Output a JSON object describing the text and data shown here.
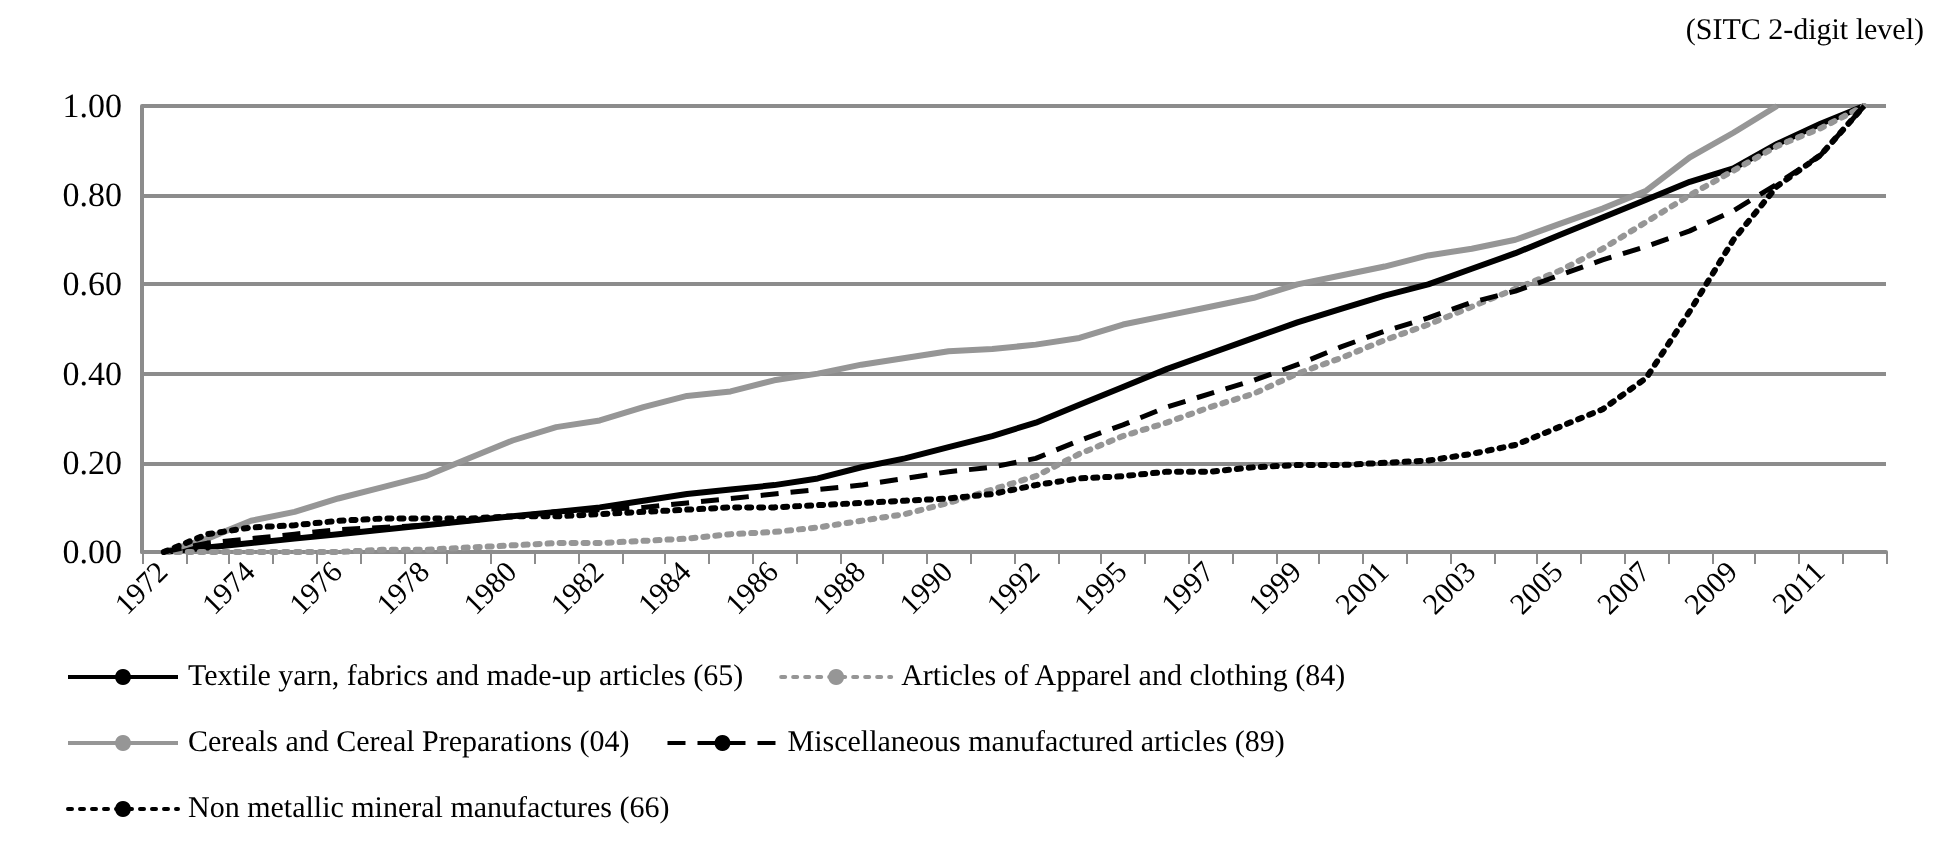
{
  "chart_data": {
    "type": "line",
    "annotations": [
      "(SITC 2-digit level)"
    ],
    "categories": [
      "1972",
      null,
      "1974",
      null,
      "1976",
      null,
      "1978",
      null,
      "1980",
      null,
      "1982",
      null,
      "1984",
      null,
      "1986",
      null,
      "1988",
      null,
      "1990",
      null,
      "1992",
      null,
      "1995",
      null,
      "1997",
      null,
      "1999",
      null,
      "2001",
      null,
      "2003",
      null,
      "2005",
      null,
      "2007",
      null,
      "2009",
      null,
      "2011",
      null
    ],
    "series": [
      {
        "name": "Textile yarn, fabrics and made-up articles (65)",
        "color": "#000000",
        "line_style": "solid",
        "values": [
          0.0,
          0.01,
          0.02,
          0.03,
          0.04,
          0.05,
          0.06,
          0.07,
          0.08,
          0.09,
          0.1,
          0.115,
          0.13,
          0.14,
          0.15,
          0.165,
          0.19,
          0.21,
          0.235,
          0.26,
          0.29,
          0.33,
          0.37,
          0.41,
          0.445,
          0.48,
          0.515,
          0.545,
          0.575,
          0.6,
          0.635,
          0.67,
          0.71,
          0.75,
          0.79,
          0.83,
          0.86,
          0.915,
          0.96,
          1.0
        ]
      },
      {
        "name": "Articles of Apparel and clothing (84)",
        "color": "#969696",
        "line_style": "dotted",
        "values": [
          0.0,
          0.0,
          0.0,
          0.0,
          0.0,
          0.005,
          0.005,
          0.01,
          0.015,
          0.02,
          0.02,
          0.025,
          0.03,
          0.04,
          0.045,
          0.055,
          0.07,
          0.085,
          0.11,
          0.14,
          0.17,
          0.22,
          0.26,
          0.29,
          0.325,
          0.355,
          0.4,
          0.435,
          0.475,
          0.51,
          0.55,
          0.59,
          0.63,
          0.68,
          0.74,
          0.8,
          0.855,
          0.91,
          0.95,
          1.0
        ]
      },
      {
        "name": "Cereals and Cereal Preparations (04)",
        "color": "#969696",
        "line_style": "solid",
        "values": [
          0.0,
          0.03,
          0.07,
          0.09,
          0.12,
          0.145,
          0.17,
          0.21,
          0.25,
          0.28,
          0.295,
          0.325,
          0.35,
          0.36,
          0.385,
          0.4,
          0.42,
          0.435,
          0.45,
          0.455,
          0.465,
          0.48,
          0.51,
          0.53,
          0.55,
          0.57,
          0.6,
          0.62,
          0.64,
          0.665,
          0.68,
          0.7,
          0.735,
          0.77,
          0.81,
          0.885,
          0.94,
          1.0,
          null,
          null
        ]
      },
      {
        "name": "Miscellaneous manufactured articles (89)",
        "color": "#000000",
        "line_style": "dashed",
        "values": [
          0.0,
          0.02,
          0.03,
          0.04,
          0.05,
          0.055,
          0.06,
          0.07,
          0.08,
          0.09,
          0.095,
          0.1,
          0.11,
          0.12,
          0.13,
          0.14,
          0.15,
          0.165,
          0.18,
          0.19,
          0.21,
          0.25,
          0.285,
          0.325,
          0.355,
          0.385,
          0.42,
          0.46,
          0.495,
          0.525,
          0.56,
          0.585,
          0.62,
          0.655,
          0.685,
          0.72,
          0.765,
          0.825,
          0.89,
          1.0
        ]
      },
      {
        "name": "Non metallic mineral manufactures (66)",
        "color": "#000000",
        "line_style": "dotted",
        "values": [
          0.0,
          0.04,
          0.055,
          0.06,
          0.07,
          0.075,
          0.075,
          0.075,
          0.08,
          0.08,
          0.085,
          0.09,
          0.095,
          0.1,
          0.1,
          0.105,
          0.11,
          0.115,
          0.12,
          0.13,
          0.15,
          0.165,
          0.17,
          0.18,
          0.18,
          0.19,
          0.195,
          0.195,
          0.2,
          0.205,
          0.22,
          0.24,
          0.28,
          0.32,
          0.39,
          0.54,
          0.7,
          0.82,
          0.89,
          1.0
        ]
      }
    ],
    "ylim": [
      0,
      1
    ],
    "yticks": [
      {
        "value": 0,
        "label": "0.00"
      },
      {
        "value": 0.2,
        "label": "0.20"
      },
      {
        "value": 0.4,
        "label": "0.40"
      },
      {
        "value": 0.6,
        "label": "0.60"
      },
      {
        "value": 0.8,
        "label": "0.80"
      },
      {
        "value": 1,
        "label": "1.00"
      }
    ],
    "grid": "y",
    "legend": "bottom",
    "marker": "none"
  }
}
